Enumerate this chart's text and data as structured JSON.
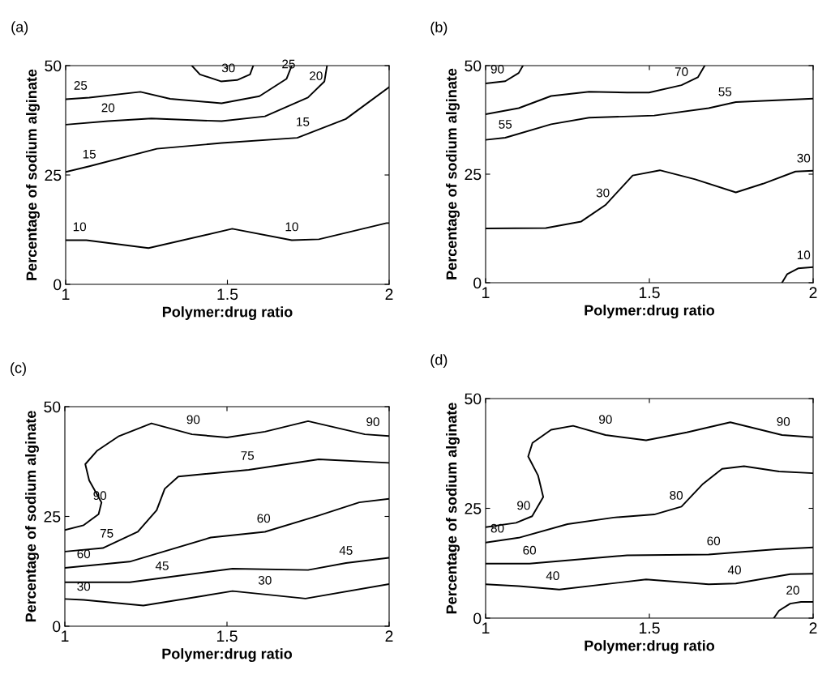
{
  "chart_data": [
    {
      "type": "line",
      "title": "(a)",
      "xlabel": "Polymer:drug ratio",
      "ylabel": "Percentage of sodium alginate",
      "xlim": [
        1,
        2
      ],
      "ylim": [
        0,
        50
      ],
      "xticks": [
        1,
        1.5,
        2
      ],
      "yticks": [
        0,
        25,
        50
      ],
      "grid": false,
      "series": [
        {
          "color": "#000000",
          "x": [
            1.39,
            1.415,
            1.48,
            1.53,
            1.57,
            1.58
          ],
          "values": [
            50,
            48.0,
            46.4,
            46.7,
            48.0,
            50
          ]
        },
        {
          "color": "#000000",
          "x": [
            1,
            1.073,
            1.231,
            1.323,
            1.482,
            1.599,
            1.683,
            1.699
          ],
          "values": [
            42.3,
            42.7,
            44.0,
            42.4,
            41.4,
            43.0,
            47.0,
            50
          ]
        },
        {
          "color": "#000000",
          "x": [
            1,
            1.131,
            1.265,
            1.482,
            1.616,
            1.749,
            1.8,
            1.808
          ],
          "values": [
            36.5,
            37.3,
            37.9,
            37.3,
            38.4,
            42.7,
            46.4,
            50
          ]
        },
        {
          "color": "#000000",
          "x": [
            1,
            1.073,
            1.282,
            1.482,
            1.716,
            1.866,
            2
          ],
          "values": [
            25.7,
            27.0,
            31.0,
            32.3,
            33.5,
            37.8,
            45.1
          ]
        },
        {
          "color": "#000000",
          "x": [
            1,
            1.064,
            1.256,
            1.515,
            1.699,
            1.783,
            1.992,
            2
          ],
          "values": [
            10.1,
            10.1,
            8.3,
            12.7,
            10.1,
            10.3,
            14.0,
            14.0
          ]
        }
      ],
      "annotations": [
        {
          "text": "30",
          "x": 1.503,
          "y": 46.4
        },
        {
          "text": "25",
          "x": 1.046,
          "y": 42.4
        },
        {
          "text": "25",
          "x": 1.689,
          "y": 47.3
        },
        {
          "text": "20",
          "x": 1.131,
          "y": 37.3
        },
        {
          "text": "20",
          "x": 1.774,
          "y": 44.6
        },
        {
          "text": "15",
          "x": 1.073,
          "y": 26.7
        },
        {
          "text": "15",
          "x": 1.733,
          "y": 34.1
        },
        {
          "text": "10",
          "x": 1.043,
          "y": 10.1
        },
        {
          "text": "10",
          "x": 1.699,
          "y": 10.1
        }
      ]
    },
    {
      "type": "line",
      "title": "(b)",
      "xlabel": "Polymer:drug ratio",
      "ylabel": "Percentage of sodium alginate",
      "xlim": [
        1,
        2
      ],
      "ylim": [
        0,
        50
      ],
      "xticks": [
        1,
        1.5,
        2
      ],
      "yticks": [
        0,
        25,
        50
      ],
      "grid": false,
      "series": [
        {
          "color": "#000000",
          "x": [
            1,
            1.06,
            1.101,
            1.114
          ],
          "values": [
            45.9,
            46.4,
            48.3,
            50
          ]
        },
        {
          "color": "#000000",
          "x": [
            1,
            1.101,
            1.2,
            1.316,
            1.432,
            1.499,
            1.598,
            1.648,
            1.669
          ],
          "values": [
            38.8,
            40.2,
            43.0,
            44.0,
            43.8,
            43.8,
            45.5,
            47.3,
            50
          ]
        },
        {
          "color": "#000000",
          "x": [
            1,
            1.06,
            1.2,
            1.316,
            1.515,
            1.681,
            1.764,
            2
          ],
          "values": [
            32.9,
            33.4,
            36.5,
            38.0,
            38.5,
            40.2,
            41.6,
            42.4
          ]
        },
        {
          "color": "#000000",
          "x": [
            1,
            1.184,
            1.292,
            1.366,
            1.449,
            1.532,
            1.64,
            1.764,
            1.847,
            1.946,
            2
          ],
          "values": [
            12.5,
            12.6,
            14.1,
            17.9,
            24.7,
            25.9,
            23.8,
            20.8,
            22.8,
            25.6,
            25.8
          ]
        },
        {
          "color": "#000000",
          "x": [
            1.905,
            1.921,
            1.954,
            2
          ],
          "values": [
            0,
            2.0,
            3.3,
            3.6
          ]
        }
      ],
      "annotations": [
        {
          "text": "90",
          "x": 1.036,
          "y": 46.1
        },
        {
          "text": "70",
          "x": 1.598,
          "y": 45.5
        },
        {
          "text": "55",
          "x": 1.06,
          "y": 33.4
        },
        {
          "text": "55",
          "x": 1.731,
          "y": 40.9
        },
        {
          "text": "30",
          "x": 1.358,
          "y": 17.6
        },
        {
          "text": "30",
          "x": 1.971,
          "y": 25.6
        },
        {
          "text": "10",
          "x": 1.971,
          "y": 3.3
        }
      ]
    },
    {
      "type": "line",
      "title": "(c)",
      "xlabel": "Polymer:drug ratio",
      "ylabel": "Percentage of sodium alginate",
      "xlim": [
        1,
        2
      ],
      "ylim": [
        0,
        50
      ],
      "xticks": [
        1,
        1.5,
        2
      ],
      "yticks": [
        0,
        25,
        50
      ],
      "grid": false,
      "series": [
        {
          "color": "#000000",
          "x": [
            1,
            1.058,
            1.104,
            1.113,
            1.075,
            1.063,
            1.1,
            1.167,
            1.267,
            1.392,
            1.5,
            1.617,
            1.75,
            1.925,
            2
          ],
          "values": [
            21.9,
            23.0,
            25.5,
            28.2,
            33.2,
            36.9,
            40.0,
            43.3,
            46.2,
            43.7,
            43.0,
            44.3,
            46.7,
            43.7,
            43.3
          ]
        },
        {
          "color": "#000000",
          "x": [
            1,
            1.117,
            1.225,
            1.283,
            1.308,
            1.35,
            1.567,
            1.783,
            2
          ],
          "values": [
            17.0,
            17.8,
            21.5,
            26.4,
            31.3,
            34.1,
            35.6,
            38.0,
            37.2
          ]
        },
        {
          "color": "#000000",
          "x": [
            1,
            1.2,
            1.45,
            1.617,
            1.783,
            1.908,
            2
          ],
          "values": [
            13.3,
            14.7,
            20.2,
            21.5,
            25.2,
            28.2,
            29.0
          ]
        },
        {
          "color": "#000000",
          "x": [
            1,
            1.2,
            1.517,
            1.75,
            1.867,
            2
          ],
          "values": [
            10.0,
            10.0,
            13.1,
            12.8,
            14.4,
            15.6
          ]
        },
        {
          "color": "#000000",
          "x": [
            1,
            1.058,
            1.242,
            1.517,
            1.742,
            2
          ],
          "values": [
            6.2,
            6.0,
            4.7,
            8.0,
            6.3,
            9.6
          ]
        }
      ],
      "annotations": [
        {
          "text": "90",
          "x": 1.396,
          "y": 44.0
        },
        {
          "text": "90",
          "x": 1.95,
          "y": 43.5
        },
        {
          "text": "90",
          "x": 1.108,
          "y": 26.7
        },
        {
          "text": "75",
          "x": 1.563,
          "y": 35.8
        },
        {
          "text": "75",
          "x": 1.129,
          "y": 18.1
        },
        {
          "text": "60",
          "x": 1.613,
          "y": 21.5
        },
        {
          "text": "60",
          "x": 1.058,
          "y": 13.4
        },
        {
          "text": "45",
          "x": 1.3,
          "y": 10.7
        },
        {
          "text": "45",
          "x": 1.867,
          "y": 14.2
        },
        {
          "text": "30",
          "x": 1.058,
          "y": 6.0
        },
        {
          "text": "30",
          "x": 1.617,
          "y": 7.4
        }
      ]
    },
    {
      "type": "line",
      "title": "(d)",
      "xlabel": "Polymer:drug ratio",
      "ylabel": "Percentage of sodium alginate",
      "xlim": [
        1,
        2
      ],
      "ylim": [
        0,
        50
      ],
      "xticks": [
        1,
        1.5,
        2
      ],
      "yticks": [
        0,
        25,
        50
      ],
      "grid": false,
      "series": [
        {
          "color": "#000000",
          "x": [
            1,
            1.093,
            1.142,
            1.176,
            1.16,
            1.13,
            1.143,
            1.2,
            1.267,
            1.366,
            1.49,
            1.614,
            1.747,
            1.905,
            2
          ],
          "values": [
            20.7,
            21.7,
            23.2,
            27.6,
            32.5,
            36.8,
            39.9,
            42.9,
            43.8,
            41.7,
            40.5,
            42.3,
            44.6,
            41.7,
            41.2
          ]
        },
        {
          "color": "#000000",
          "x": [
            1,
            1.101,
            1.25,
            1.391,
            1.515,
            1.598,
            1.664,
            1.722,
            1.789,
            1.896,
            2
          ],
          "values": [
            17.2,
            18.3,
            21.4,
            22.9,
            23.6,
            25.4,
            30.6,
            34.0,
            34.6,
            33.4,
            33.0
          ]
        },
        {
          "color": "#000000",
          "x": [
            1,
            1.134,
            1.432,
            1.681,
            1.888,
            2
          ],
          "values": [
            12.4,
            12.4,
            14.3,
            14.5,
            15.7,
            16.1
          ]
        },
        {
          "color": "#000000",
          "x": [
            1,
            1.101,
            1.225,
            1.49,
            1.681,
            1.764,
            1.93,
            2
          ],
          "values": [
            7.7,
            7.3,
            6.5,
            8.8,
            7.7,
            7.9,
            10.0,
            10.1
          ]
        },
        {
          "color": "#000000",
          "x": [
            1.88,
            1.896,
            1.93,
            1.963,
            2
          ],
          "values": [
            0,
            1.7,
            3.3,
            3.7,
            3.7
          ]
        }
      ],
      "annotations": [
        {
          "text": "90",
          "x": 1.366,
          "y": 42.2
        },
        {
          "text": "90",
          "x": 1.909,
          "y": 41.7
        },
        {
          "text": "90",
          "x": 1.116,
          "y": 22.6
        },
        {
          "text": "80",
          "x": 1.036,
          "y": 17.4
        },
        {
          "text": "80",
          "x": 1.582,
          "y": 24.9
        },
        {
          "text": "60",
          "x": 1.134,
          "y": 12.4
        },
        {
          "text": "60",
          "x": 1.696,
          "y": 14.5
        },
        {
          "text": "40",
          "x": 1.205,
          "y": 6.6
        },
        {
          "text": "40",
          "x": 1.76,
          "y": 7.9
        },
        {
          "text": "20",
          "x": 1.938,
          "y": 3.3
        }
      ]
    }
  ]
}
